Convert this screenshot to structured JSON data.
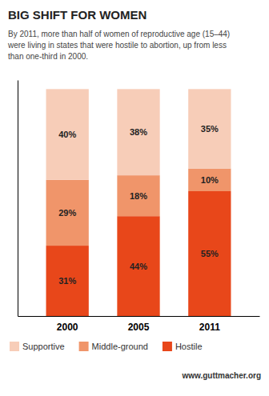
{
  "chart_data": {
    "type": "bar",
    "stacked": true,
    "title": "BIG SHIFT FOR WOMEN",
    "subtitle": "By 2011, more than half of women of reproductive age (15–44)\nwere living in states that were hostile to abortion, up from less\nthan one-third in 2000.",
    "categories": [
      "2000",
      "2005",
      "2011"
    ],
    "series": [
      {
        "name": "Hostile",
        "color": "#E8471A",
        "values": [
          31,
          44,
          55
        ],
        "value_labels": [
          "31%",
          "44%",
          "55%"
        ]
      },
      {
        "name": "Middle-ground",
        "color": "#F0956A",
        "values": [
          29,
          18,
          10
        ],
        "value_labels": [
          "29%",
          "18%",
          "10%"
        ]
      },
      {
        "name": "Supportive",
        "color": "#F7CDB8",
        "values": [
          40,
          38,
          35
        ],
        "value_labels": [
          "40%",
          "38%",
          "35%"
        ]
      }
    ],
    "ylim": [
      0,
      104
    ],
    "yticks": [],
    "tick_labels": "x",
    "data_labels": true,
    "grid": false,
    "legend": "bottom",
    "annotations": [
      "www.guttmacher.org"
    ]
  }
}
